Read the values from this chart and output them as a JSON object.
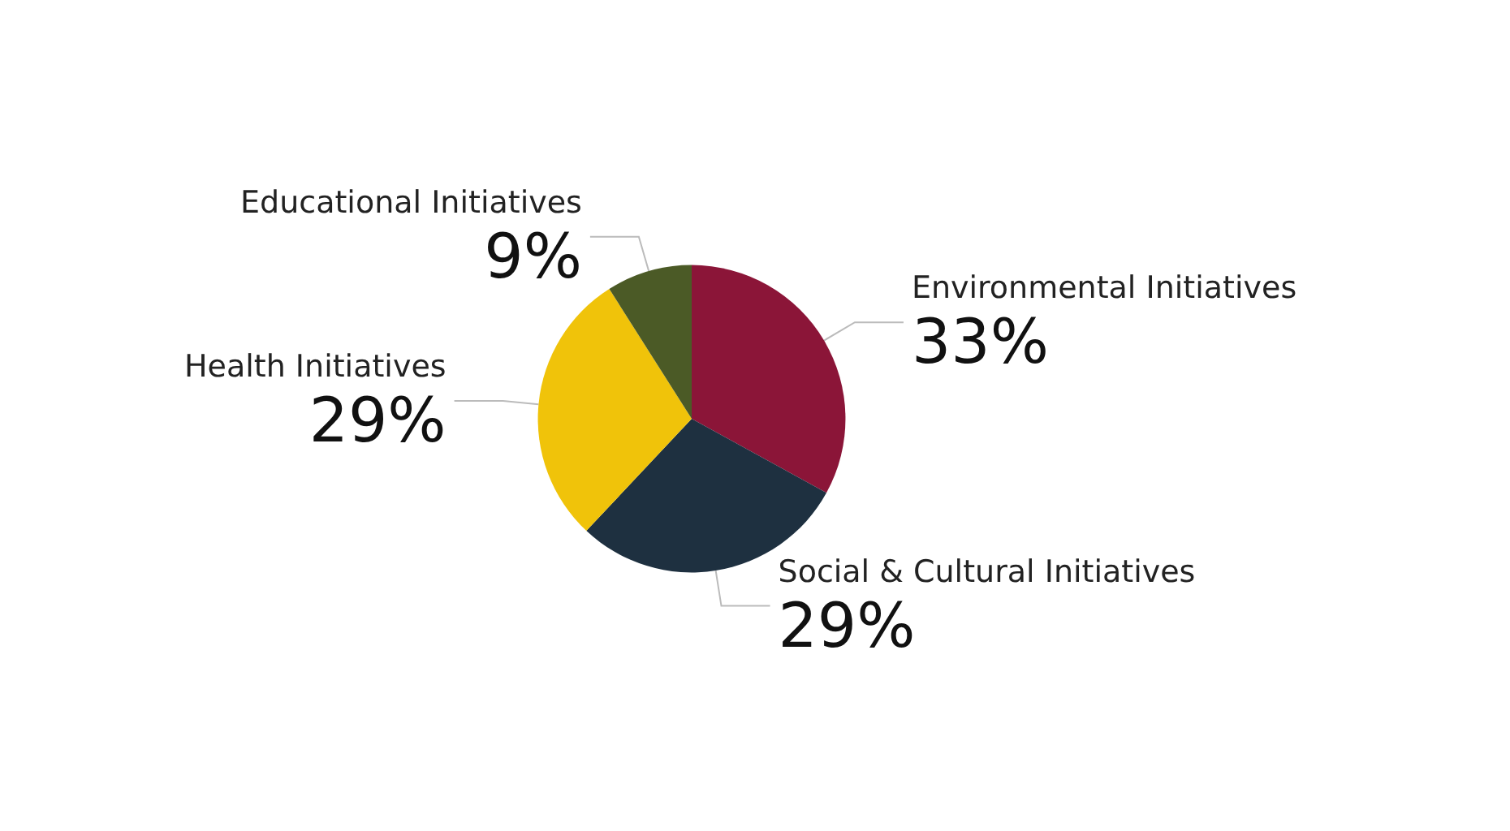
{
  "chart_data": {
    "type": "pie",
    "categories": [
      "Environmental Initiatives",
      "Social & Cultural Initiatives",
      "Health Initiatives",
      "Educational Initiatives"
    ],
    "values": [
      33,
      29,
      29,
      9
    ],
    "value_labels": [
      "33%",
      "29%",
      "29%",
      "9%"
    ],
    "colors": [
      "#8b1538",
      "#1e3040",
      "#f0c30a",
      "#4b5a26"
    ],
    "legend": false
  }
}
